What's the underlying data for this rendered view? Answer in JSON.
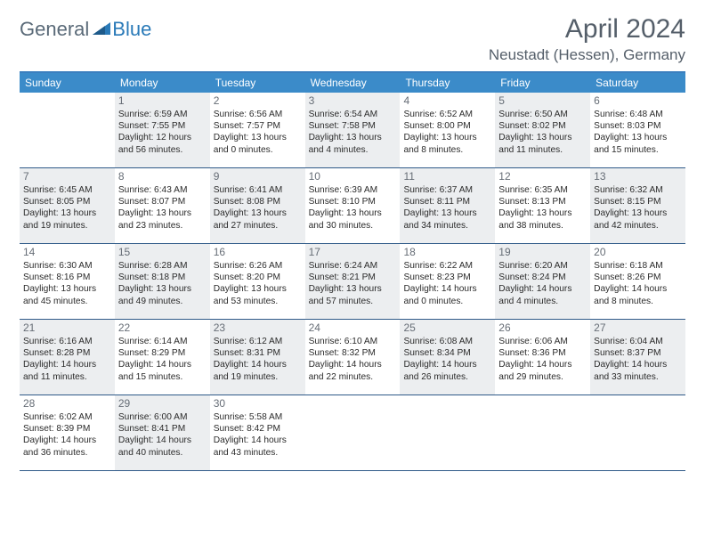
{
  "header": {
    "logo_general": "General",
    "logo_blue": "Blue",
    "month_title": "April 2024",
    "location": "Neustadt (Hessen), Germany"
  },
  "styling": {
    "header_bar_color": "#3b8bc9",
    "header_border_color": "#3b7fbf",
    "week_divider_color": "#2f5a88",
    "shaded_bg": "#eceef0",
    "page_bg": "#ffffff",
    "body_text_color": "#2b2b2b",
    "title_color": "#555f6a",
    "daynum_color": "#666d76",
    "dow_text_color": "#ffffff",
    "fontsize_title": 30,
    "fontsize_location": 17,
    "fontsize_dow": 12,
    "fontsize_daynum": 12,
    "fontsize_body": 10.2
  },
  "dow": [
    "Sunday",
    "Monday",
    "Tuesday",
    "Wednesday",
    "Thursday",
    "Friday",
    "Saturday"
  ],
  "weeks": [
    [
      {
        "num": "",
        "shaded": false,
        "lines": []
      },
      {
        "num": "1",
        "shaded": true,
        "lines": [
          "Sunrise: 6:59 AM",
          "Sunset: 7:55 PM",
          "Daylight: 12 hours",
          "and 56 minutes."
        ]
      },
      {
        "num": "2",
        "shaded": false,
        "lines": [
          "Sunrise: 6:56 AM",
          "Sunset: 7:57 PM",
          "Daylight: 13 hours",
          "and 0 minutes."
        ]
      },
      {
        "num": "3",
        "shaded": true,
        "lines": [
          "Sunrise: 6:54 AM",
          "Sunset: 7:58 PM",
          "Daylight: 13 hours",
          "and 4 minutes."
        ]
      },
      {
        "num": "4",
        "shaded": false,
        "lines": [
          "Sunrise: 6:52 AM",
          "Sunset: 8:00 PM",
          "Daylight: 13 hours",
          "and 8 minutes."
        ]
      },
      {
        "num": "5",
        "shaded": true,
        "lines": [
          "Sunrise: 6:50 AM",
          "Sunset: 8:02 PM",
          "Daylight: 13 hours",
          "and 11 minutes."
        ]
      },
      {
        "num": "6",
        "shaded": false,
        "lines": [
          "Sunrise: 6:48 AM",
          "Sunset: 8:03 PM",
          "Daylight: 13 hours",
          "and 15 minutes."
        ]
      }
    ],
    [
      {
        "num": "7",
        "shaded": true,
        "lines": [
          "Sunrise: 6:45 AM",
          "Sunset: 8:05 PM",
          "Daylight: 13 hours",
          "and 19 minutes."
        ]
      },
      {
        "num": "8",
        "shaded": false,
        "lines": [
          "Sunrise: 6:43 AM",
          "Sunset: 8:07 PM",
          "Daylight: 13 hours",
          "and 23 minutes."
        ]
      },
      {
        "num": "9",
        "shaded": true,
        "lines": [
          "Sunrise: 6:41 AM",
          "Sunset: 8:08 PM",
          "Daylight: 13 hours",
          "and 27 minutes."
        ]
      },
      {
        "num": "10",
        "shaded": false,
        "lines": [
          "Sunrise: 6:39 AM",
          "Sunset: 8:10 PM",
          "Daylight: 13 hours",
          "and 30 minutes."
        ]
      },
      {
        "num": "11",
        "shaded": true,
        "lines": [
          "Sunrise: 6:37 AM",
          "Sunset: 8:11 PM",
          "Daylight: 13 hours",
          "and 34 minutes."
        ]
      },
      {
        "num": "12",
        "shaded": false,
        "lines": [
          "Sunrise: 6:35 AM",
          "Sunset: 8:13 PM",
          "Daylight: 13 hours",
          "and 38 minutes."
        ]
      },
      {
        "num": "13",
        "shaded": true,
        "lines": [
          "Sunrise: 6:32 AM",
          "Sunset: 8:15 PM",
          "Daylight: 13 hours",
          "and 42 minutes."
        ]
      }
    ],
    [
      {
        "num": "14",
        "shaded": false,
        "lines": [
          "Sunrise: 6:30 AM",
          "Sunset: 8:16 PM",
          "Daylight: 13 hours",
          "and 45 minutes."
        ]
      },
      {
        "num": "15",
        "shaded": true,
        "lines": [
          "Sunrise: 6:28 AM",
          "Sunset: 8:18 PM",
          "Daylight: 13 hours",
          "and 49 minutes."
        ]
      },
      {
        "num": "16",
        "shaded": false,
        "lines": [
          "Sunrise: 6:26 AM",
          "Sunset: 8:20 PM",
          "Daylight: 13 hours",
          "and 53 minutes."
        ]
      },
      {
        "num": "17",
        "shaded": true,
        "lines": [
          "Sunrise: 6:24 AM",
          "Sunset: 8:21 PM",
          "Daylight: 13 hours",
          "and 57 minutes."
        ]
      },
      {
        "num": "18",
        "shaded": false,
        "lines": [
          "Sunrise: 6:22 AM",
          "Sunset: 8:23 PM",
          "Daylight: 14 hours",
          "and 0 minutes."
        ]
      },
      {
        "num": "19",
        "shaded": true,
        "lines": [
          "Sunrise: 6:20 AM",
          "Sunset: 8:24 PM",
          "Daylight: 14 hours",
          "and 4 minutes."
        ]
      },
      {
        "num": "20",
        "shaded": false,
        "lines": [
          "Sunrise: 6:18 AM",
          "Sunset: 8:26 PM",
          "Daylight: 14 hours",
          "and 8 minutes."
        ]
      }
    ],
    [
      {
        "num": "21",
        "shaded": true,
        "lines": [
          "Sunrise: 6:16 AM",
          "Sunset: 8:28 PM",
          "Daylight: 14 hours",
          "and 11 minutes."
        ]
      },
      {
        "num": "22",
        "shaded": false,
        "lines": [
          "Sunrise: 6:14 AM",
          "Sunset: 8:29 PM",
          "Daylight: 14 hours",
          "and 15 minutes."
        ]
      },
      {
        "num": "23",
        "shaded": true,
        "lines": [
          "Sunrise: 6:12 AM",
          "Sunset: 8:31 PM",
          "Daylight: 14 hours",
          "and 19 minutes."
        ]
      },
      {
        "num": "24",
        "shaded": false,
        "lines": [
          "Sunrise: 6:10 AM",
          "Sunset: 8:32 PM",
          "Daylight: 14 hours",
          "and 22 minutes."
        ]
      },
      {
        "num": "25",
        "shaded": true,
        "lines": [
          "Sunrise: 6:08 AM",
          "Sunset: 8:34 PM",
          "Daylight: 14 hours",
          "and 26 minutes."
        ]
      },
      {
        "num": "26",
        "shaded": false,
        "lines": [
          "Sunrise: 6:06 AM",
          "Sunset: 8:36 PM",
          "Daylight: 14 hours",
          "and 29 minutes."
        ]
      },
      {
        "num": "27",
        "shaded": true,
        "lines": [
          "Sunrise: 6:04 AM",
          "Sunset: 8:37 PM",
          "Daylight: 14 hours",
          "and 33 minutes."
        ]
      }
    ],
    [
      {
        "num": "28",
        "shaded": false,
        "lines": [
          "Sunrise: 6:02 AM",
          "Sunset: 8:39 PM",
          "Daylight: 14 hours",
          "and 36 minutes."
        ]
      },
      {
        "num": "29",
        "shaded": true,
        "lines": [
          "Sunrise: 6:00 AM",
          "Sunset: 8:41 PM",
          "Daylight: 14 hours",
          "and 40 minutes."
        ]
      },
      {
        "num": "30",
        "shaded": false,
        "lines": [
          "Sunrise: 5:58 AM",
          "Sunset: 8:42 PM",
          "Daylight: 14 hours",
          "and 43 minutes."
        ]
      },
      {
        "num": "",
        "shaded": false,
        "lines": []
      },
      {
        "num": "",
        "shaded": false,
        "lines": []
      },
      {
        "num": "",
        "shaded": false,
        "lines": []
      },
      {
        "num": "",
        "shaded": false,
        "lines": []
      }
    ]
  ]
}
